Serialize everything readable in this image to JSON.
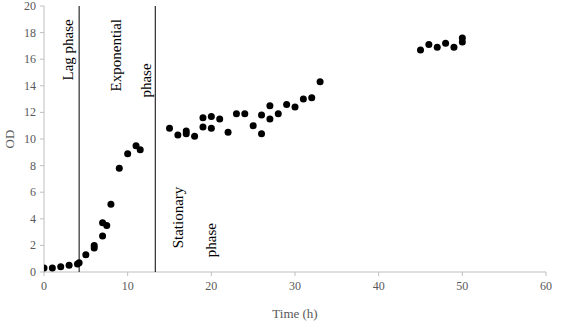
{
  "chart_data": {
    "type": "scatter",
    "x_label": "Time (h)",
    "y_label": "OD",
    "x": [
      0,
      1,
      2,
      3,
      4,
      4.2,
      5,
      6,
      6,
      7,
      7,
      7.5,
      8,
      9,
      10,
      11,
      11.5,
      15,
      16,
      17,
      17,
      18,
      19,
      19,
      20,
      20,
      21,
      22,
      23,
      24,
      25,
      26,
      26,
      27,
      27,
      28,
      29,
      30,
      31,
      32,
      33,
      45,
      46,
      47,
      48,
      49,
      50,
      50
    ],
    "values": [
      0.3,
      0.3,
      0.4,
      0.5,
      0.6,
      0.7,
      1.3,
      1.8,
      2.0,
      2.7,
      3.7,
      3.5,
      5.1,
      7.8,
      8.9,
      9.5,
      9.2,
      10.8,
      10.3,
      10.6,
      10.4,
      10.2,
      11.6,
      10.9,
      11.7,
      10.8,
      11.5,
      10.5,
      11.9,
      11.9,
      11.0,
      11.8,
      10.4,
      12.5,
      11.5,
      11.9,
      12.6,
      12.4,
      13.0,
      13.1,
      14.3,
      16.7,
      17.1,
      16.9,
      17.2,
      16.9,
      17.6,
      17.3
    ],
    "color": "#000000",
    "marker": "circle",
    "grid": false,
    "xlim": [
      0,
      60
    ],
    "xticks": [
      0,
      10,
      20,
      30,
      40,
      50,
      60
    ],
    "ylim": [
      0,
      20
    ],
    "yticks": [
      0,
      2,
      4,
      6,
      8,
      10,
      12,
      14,
      16,
      18,
      20
    ],
    "phase_boundaries": [
      4.2,
      13.3
    ],
    "annotations": [
      {
        "text": "Lag phase",
        "x": 2.9,
        "y": 16.7
      },
      {
        "text": "Exponential",
        "x": 8.6,
        "y": 16.3
      },
      {
        "text": "phase",
        "x": 12.2,
        "y": 14.4
      },
      {
        "text": "Stationary",
        "x": 16.0,
        "y": 4.1
      },
      {
        "text": "phase",
        "x": 20.0,
        "y": 2.4
      }
    ]
  }
}
